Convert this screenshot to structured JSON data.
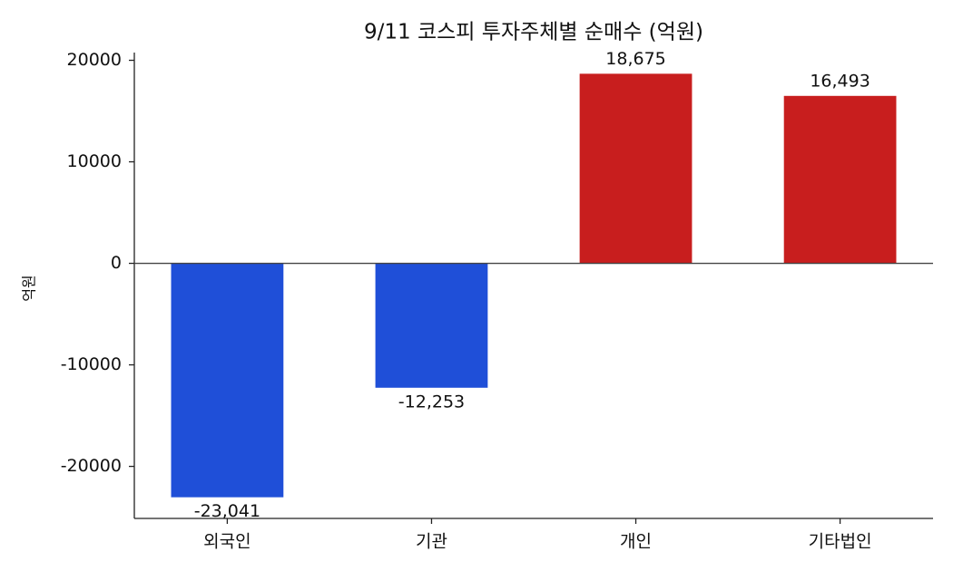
{
  "chart_data": {
    "type": "bar",
    "title": "9/11 코스피 투자주체별 순매수 (억원)",
    "y_label": "억원",
    "categories": [
      "외국인",
      "기관",
      "개인",
      "기타법인"
    ],
    "values": [
      -23041,
      -12253,
      18675,
      16493
    ],
    "value_labels": [
      "-23,041",
      "-12,253",
      "18,675",
      "16,493"
    ],
    "colors": [
      "#1f4fd8",
      "#1f4fd8",
      "#c81e1e",
      "#c81e1e"
    ],
    "ylim": [
      -25127,
      20761
    ],
    "yticks": [
      -20000,
      -10000,
      0,
      10000,
      20000
    ],
    "grid": false
  }
}
